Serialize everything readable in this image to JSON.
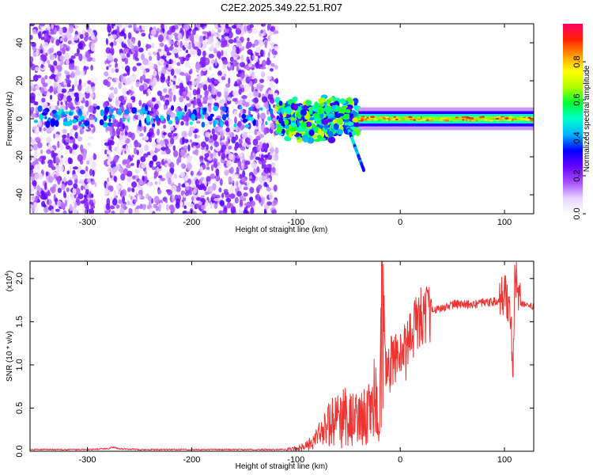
{
  "title": "C2E2.2025.349.22.51.R07",
  "chart_data": [
    {
      "type": "heatmap",
      "name": "spectrogram",
      "xlabel": "Height of straight line (km)",
      "ylabel": "Frequency (Hz)",
      "xlim": [
        -355,
        128
      ],
      "ylim": [
        -50,
        50
      ],
      "xticks": [
        -300,
        -200,
        -100,
        0,
        100
      ],
      "yticks": [
        -40,
        -20,
        0,
        20,
        40
      ],
      "xtick_labels": [
        "-300",
        "-200",
        "-100",
        "0",
        "100"
      ],
      "ytick_labels": [
        "-40",
        "-20",
        "0",
        "20",
        "40"
      ],
      "colorbar": {
        "label": "Normalized spectral amplitude",
        "range": [
          0,
          1
        ],
        "ticks": [
          0.0,
          0.2,
          0.4,
          0.6,
          0.8
        ],
        "tick_labels": [
          "0.0",
          "0.2",
          "0.4",
          "0.6",
          "0.8"
        ],
        "colors": [
          "#ffffff",
          "#e6d2ff",
          "#a64dff",
          "#6600ff",
          "#0000ff",
          "#00b3ff",
          "#00ffcc",
          "#00ff33",
          "#b3ff00",
          "#ffff00",
          "#ff9900",
          "#ff2200",
          "#ff0066"
        ]
      },
      "regions": [
        {
          "description": "broadband noise",
          "x_range": [
            -355,
            -118
          ],
          "freq_range": [
            -50,
            50
          ],
          "amplitude": 0.15
        },
        {
          "description": "transition cluster",
          "x_range": [
            -118,
            -40
          ],
          "freq_range": [
            -12,
            12
          ],
          "amplitude": 0.5
        },
        {
          "description": "narrow band tone",
          "x_range": [
            -40,
            128
          ],
          "freq_range": [
            -2,
            2
          ],
          "amplitude": 0.85
        }
      ]
    },
    {
      "type": "line",
      "name": "snr",
      "xlabel": "Height of straight line (km)",
      "ylabel": "SNR (10 * v/v)",
      "exponent_label": "(x10",
      "exponent_power": "4",
      "exponent_close": ")",
      "xlim": [
        -355,
        128
      ],
      "ylim": [
        0,
        2.2
      ],
      "xticks": [
        -300,
        -200,
        -100,
        0,
        100
      ],
      "yticks": [
        0.0,
        0.5,
        1.0,
        1.5,
        2.0
      ],
      "xtick_labels": [
        "-300",
        "-200",
        "-100",
        "0",
        "100"
      ],
      "ytick_labels": [
        "0.0",
        "0.5",
        "1.0",
        "1.5",
        "2.0"
      ],
      "color": "#ee3333",
      "series": [
        {
          "name": "SNR",
          "x": [
            -355,
            -300,
            -280,
            -275,
            -270,
            -250,
            -200,
            -150,
            -110,
            -100,
            -90,
            -80,
            -70,
            -60,
            -50,
            -40,
            -30,
            -25,
            -20,
            -18,
            -15,
            -10,
            -5,
            0,
            5,
            10,
            15,
            20,
            30,
            40,
            50,
            60,
            70,
            80,
            90,
            95,
            100,
            105,
            108,
            110,
            115,
            120,
            128
          ],
          "y": [
            0.02,
            0.02,
            0.03,
            0.05,
            0.03,
            0.02,
            0.02,
            0.02,
            0.02,
            0.03,
            0.06,
            0.15,
            0.3,
            0.35,
            0.4,
            0.35,
            0.45,
            0.6,
            0.35,
            1.8,
            0.9,
            1.0,
            1.1,
            1.1,
            1.15,
            1.3,
            1.45,
            1.55,
            1.62,
            1.66,
            1.7,
            1.7,
            1.7,
            1.72,
            1.73,
            1.75,
            1.8,
            1.7,
            1.0,
            2.05,
            1.72,
            1.7,
            1.68
          ]
        }
      ]
    }
  ]
}
